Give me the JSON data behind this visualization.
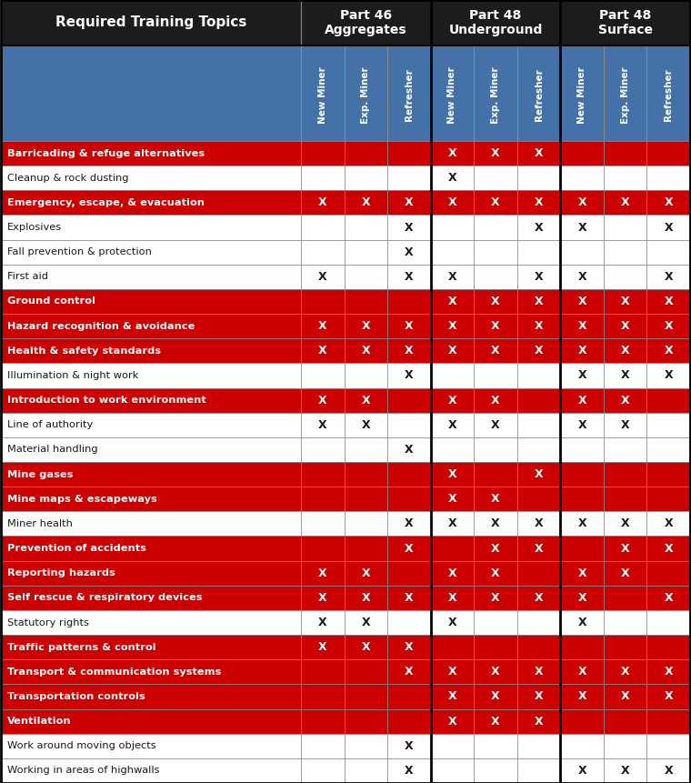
{
  "title_row": "Required Training Topics",
  "group_texts": [
    "Part 46\nAggregates",
    "Part 48\nUnderground",
    "Part 48\nSurface"
  ],
  "col_headers": [
    "New Miner",
    "Exp. Miner",
    "Refresher",
    "New Miner",
    "Exp. Miner",
    "Refresher",
    "New Miner",
    "Exp. Miner",
    "Refresher"
  ],
  "rows": [
    {
      "topic": "Barricading & refuge alternatives",
      "red": true,
      "vals": [
        0,
        0,
        0,
        1,
        1,
        1,
        0,
        0,
        0
      ]
    },
    {
      "topic": "Cleanup & rock dusting",
      "red": false,
      "vals": [
        0,
        0,
        0,
        1,
        0,
        0,
        0,
        0,
        0
      ]
    },
    {
      "topic": "Emergency, escape, & evacuation",
      "red": true,
      "vals": [
        1,
        1,
        1,
        1,
        1,
        1,
        1,
        1,
        1
      ]
    },
    {
      "topic": "Explosives",
      "red": false,
      "vals": [
        0,
        0,
        1,
        0,
        0,
        1,
        1,
        0,
        1
      ]
    },
    {
      "topic": "Fall prevention & protection",
      "red": false,
      "vals": [
        0,
        0,
        1,
        0,
        0,
        0,
        0,
        0,
        0
      ]
    },
    {
      "topic": "First aid",
      "red": false,
      "vals": [
        1,
        0,
        1,
        1,
        0,
        1,
        1,
        0,
        1
      ]
    },
    {
      "topic": "Ground control",
      "red": true,
      "vals": [
        0,
        0,
        0,
        1,
        1,
        1,
        1,
        1,
        1
      ]
    },
    {
      "topic": "Hazard recognition & avoidance",
      "red": true,
      "vals": [
        1,
        1,
        1,
        1,
        1,
        1,
        1,
        1,
        1
      ]
    },
    {
      "topic": "Health & safety standards",
      "red": true,
      "vals": [
        1,
        1,
        1,
        1,
        1,
        1,
        1,
        1,
        1
      ]
    },
    {
      "topic": "Illumination & night work",
      "red": false,
      "vals": [
        0,
        0,
        1,
        0,
        0,
        0,
        1,
        1,
        1
      ]
    },
    {
      "topic": "Introduction to work environment",
      "red": true,
      "vals": [
        1,
        1,
        0,
        1,
        1,
        0,
        1,
        1,
        0
      ]
    },
    {
      "topic": "Line of authority",
      "red": false,
      "vals": [
        1,
        1,
        0,
        1,
        1,
        0,
        1,
        1,
        0
      ]
    },
    {
      "topic": "Material handling",
      "red": false,
      "vals": [
        0,
        0,
        1,
        0,
        0,
        0,
        0,
        0,
        0
      ]
    },
    {
      "topic": "Mine gases",
      "red": true,
      "vals": [
        0,
        0,
        0,
        1,
        0,
        1,
        0,
        0,
        0
      ]
    },
    {
      "topic": "Mine maps & escapeways",
      "red": true,
      "vals": [
        0,
        0,
        0,
        1,
        1,
        0,
        0,
        0,
        0
      ]
    },
    {
      "topic": "Miner health",
      "red": false,
      "vals": [
        0,
        0,
        1,
        1,
        1,
        1,
        1,
        1,
        1
      ]
    },
    {
      "topic": "Prevention of accidents",
      "red": true,
      "vals": [
        0,
        0,
        1,
        0,
        1,
        1,
        0,
        1,
        1
      ]
    },
    {
      "topic": "Reporting hazards",
      "red": true,
      "vals": [
        1,
        1,
        0,
        1,
        1,
        0,
        1,
        1,
        0
      ]
    },
    {
      "topic": "Self rescue & respiratory devices",
      "red": true,
      "vals": [
        1,
        1,
        1,
        1,
        1,
        1,
        1,
        0,
        1
      ]
    },
    {
      "topic": "Statutory rights",
      "red": false,
      "vals": [
        1,
        1,
        0,
        1,
        0,
        0,
        1,
        0,
        0
      ]
    },
    {
      "topic": "Traffic patterns & control",
      "red": true,
      "vals": [
        1,
        1,
        1,
        0,
        0,
        0,
        0,
        0,
        0
      ]
    },
    {
      "topic": "Transport & communication systems",
      "red": true,
      "vals": [
        0,
        0,
        1,
        1,
        1,
        1,
        1,
        1,
        1
      ]
    },
    {
      "topic": "Transportation controls",
      "red": true,
      "vals": [
        0,
        0,
        0,
        1,
        1,
        1,
        1,
        1,
        1
      ]
    },
    {
      "topic": "Ventilation",
      "red": true,
      "vals": [
        0,
        0,
        0,
        1,
        1,
        1,
        0,
        0,
        0
      ]
    },
    {
      "topic": "Work around moving objects",
      "red": false,
      "vals": [
        0,
        0,
        1,
        0,
        0,
        0,
        0,
        0,
        0
      ]
    },
    {
      "topic": "Working in areas of highwalls",
      "red": false,
      "vals": [
        0,
        0,
        1,
        0,
        0,
        0,
        1,
        1,
        1
      ]
    }
  ],
  "header_top_bg": "#1C1C1C",
  "header_top_text": "#ffffff",
  "subheader_bg": "#4472a8",
  "subheader_text": "#ffffff",
  "red_row_bg": "#cc0000",
  "red_row_text": "#ffffff",
  "white_row_bg": "#ffffff",
  "white_row_text": "#1a1a1a",
  "x_on_red": "#ffffff",
  "x_on_white": "#1a1a1a",
  "border_color": "#555555",
  "thick_border": "#000000"
}
